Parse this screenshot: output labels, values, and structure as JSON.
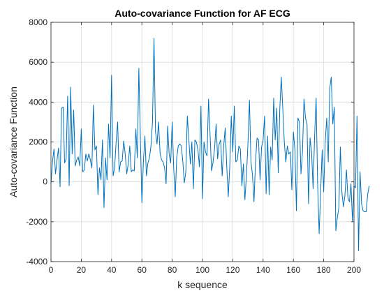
{
  "chart_data": {
    "type": "line",
    "title": "Auto-covariance Function for AF ECG",
    "xlabel": "k sequence",
    "ylabel": "Auto-covariance Function",
    "xlim": [
      0,
      200
    ],
    "ylim": [
      -4000,
      8000
    ],
    "xticks": [
      0,
      20,
      40,
      60,
      80,
      100,
      120,
      140,
      160,
      180,
      200
    ],
    "yticks": [
      -4000,
      -2000,
      0,
      2000,
      4000,
      6000,
      8000
    ],
    "grid": true,
    "line_color": "#0072bd",
    "series": [
      {
        "values": [
          -100,
          1000,
          1650,
          400,
          1100,
          1700,
          -250,
          3700,
          3750,
          950,
          1150,
          4300,
          -200,
          4750,
          1400,
          3600,
          800,
          1100,
          1250,
          800,
          2650,
          500,
          600,
          1400,
          1050,
          1400,
          1100,
          700,
          3850,
          1600,
          1800,
          -650,
          700,
          100,
          2100,
          -1300,
          1200,
          100,
          2900,
          1200,
          5350,
          300,
          700,
          2000,
          3000,
          500,
          1000,
          1050,
          2050,
          1400,
          400,
          900,
          1800,
          500,
          600,
          550,
          2650,
          1200,
          5700,
          2200,
          -1050,
          1000,
          2300,
          300,
          950,
          1200,
          1800,
          3000,
          7200,
          2500,
          1900,
          3000,
          1450,
          1100,
          1000,
          700,
          -100,
          2800,
          1400,
          950,
          3000,
          700,
          -750,
          1200,
          1800,
          1900,
          1800,
          1050,
          -50,
          500,
          3300,
          2100,
          900,
          2000,
          -350,
          2100,
          2000,
          1600,
          750,
          3800,
          -850,
          2000,
          1500,
          1300,
          4150,
          2400,
          550,
          1000,
          1700,
          2900,
          1150,
          1900,
          2100,
          300,
          1800,
          2700,
          800,
          -750,
          750,
          3300,
          1500,
          3800,
          1000,
          1100,
          1800,
          1650,
          -200,
          900,
          -900,
          300,
          1900,
          4100,
          1000,
          350,
          -1000,
          1000,
          2200,
          2100,
          100,
          1750,
          2100,
          3300,
          -600,
          2300,
          -650,
          1750,
          1100,
          4200,
          2100,
          3700,
          450,
          3600,
          5250,
          3700,
          2000,
          1000,
          1800,
          1400,
          1500,
          -400,
          2500,
          1600,
          -1450,
          3200,
          3000,
          400,
          1500,
          4150,
          3200,
          2900,
          -1100,
          2200,
          1500,
          -350,
          2300,
          4200,
          -100,
          -2600,
          -500,
          1600,
          -500,
          2000,
          3200,
          1000,
          4700,
          5250,
          2900,
          3750,
          -2450,
          -1800,
          -1300,
          1750,
          -500,
          -1250,
          -700,
          600,
          -800,
          -1000,
          -100,
          -2000,
          -200,
          -300,
          3300,
          -3450,
          500,
          -1100,
          -1450,
          -1500,
          -1500,
          -650,
          -200
        ]
      }
    ]
  }
}
